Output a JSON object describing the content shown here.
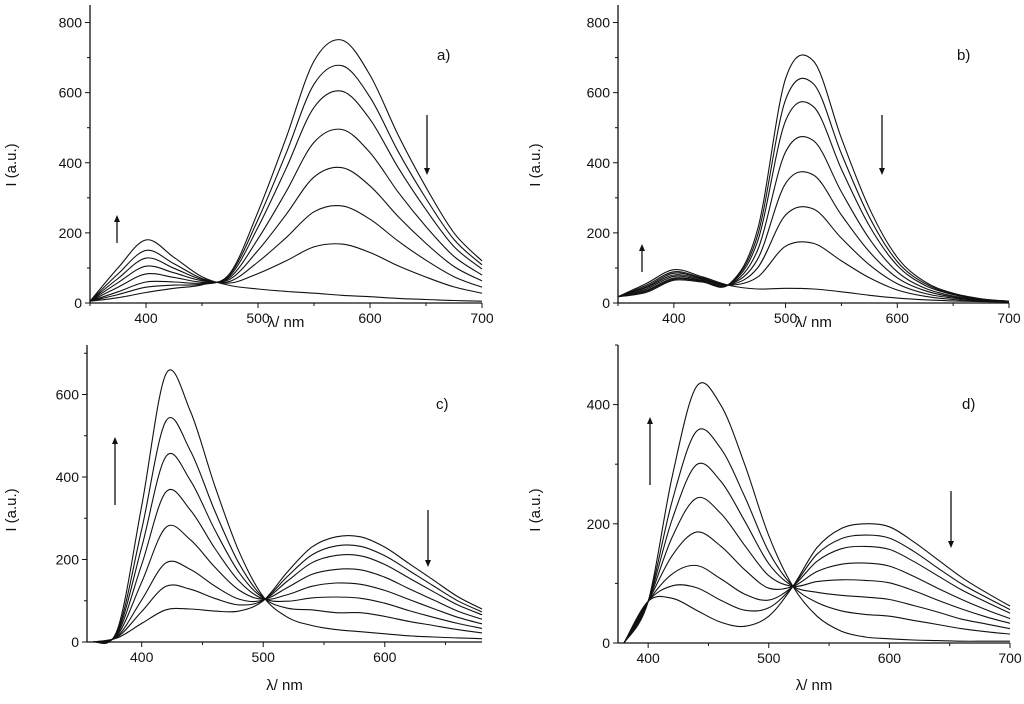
{
  "chart_data": [
    {
      "type": "line",
      "panel_label": "a)",
      "xlabel": "λ/ nm",
      "ylabel": "I (a.u.)",
      "xlim": [
        350,
        700
      ],
      "ylim": [
        0,
        850
      ],
      "xticks": [
        400,
        500,
        600,
        700
      ],
      "yticks": [
        0,
        200,
        400,
        600,
        800
      ],
      "grid": false,
      "annotations": [
        "arrow-up near 400 nm band",
        "arrow-down near 650 nm band"
      ],
      "x": [
        350,
        375,
        400,
        425,
        450,
        475,
        500,
        525,
        550,
        575,
        600,
        625,
        650,
        675,
        700
      ],
      "series": [
        {
          "values": [
            5,
            15,
            30,
            42,
            52,
            85,
            260,
            470,
            690,
            750,
            650,
            480,
            330,
            200,
            120
          ]
        },
        {
          "values": [
            5,
            24,
            45,
            51,
            54,
            82,
            238,
            426,
            624,
            677,
            587,
            433,
            298,
            181,
            109
          ]
        },
        {
          "values": [
            5,
            32,
            60,
            60,
            57,
            78,
            216,
            383,
            558,
            604,
            524,
            387,
            266,
            161,
            97
          ]
        },
        {
          "values": [
            5,
            45,
            83,
            73,
            60,
            73,
            183,
            317,
            458,
            495,
            429,
            317,
            218,
            133,
            80
          ]
        },
        {
          "values": [
            5,
            58,
            105,
            86,
            64,
            68,
            150,
            252,
            359,
            386,
            334,
            247,
            170,
            104,
            63
          ]
        },
        {
          "values": [
            5,
            70,
            128,
            99,
            67,
            62,
            117,
            186,
            260,
            277,
            239,
            177,
            122,
            75,
            45
          ]
        },
        {
          "values": [
            5,
            83,
            150,
            112,
            70,
            57,
            84,
            120,
            160,
            168,
            144,
            106,
            74,
            46,
            28
          ]
        },
        {
          "values": [
            5,
            100,
            180,
            130,
            75,
            50,
            40,
            33,
            28,
            22,
            18,
            13,
            10,
            7,
            5
          ]
        }
      ]
    },
    {
      "type": "line",
      "panel_label": "b)",
      "xlabel": "λ/ nm",
      "ylabel": "I (a.u.)",
      "xlim": [
        350,
        700
      ],
      "ylim": [
        0,
        850
      ],
      "xticks": [
        400,
        500,
        600,
        700
      ],
      "yticks": [
        0,
        200,
        400,
        600,
        800
      ],
      "grid": false,
      "annotations": [
        "arrow-up near 400 nm band",
        "arrow-down near 590 nm band"
      ],
      "x": [
        350,
        375,
        400,
        425,
        450,
        475,
        500,
        525,
        550,
        575,
        600,
        625,
        650,
        675,
        700
      ],
      "series": [
        {
          "values": [
            18,
            30,
            65,
            60,
            55,
            210,
            640,
            690,
            470,
            270,
            130,
            60,
            28,
            12,
            5
          ]
        },
        {
          "values": [
            18,
            33,
            68,
            62,
            55,
            193,
            580,
            625,
            426,
            245,
            118,
            55,
            26,
            11,
            5
          ]
        },
        {
          "values": [
            18,
            35,
            71,
            63,
            54,
            176,
            520,
            560,
            382,
            220,
            107,
            50,
            24,
            10,
            5
          ]
        },
        {
          "values": [
            18,
            39,
            76,
            65,
            53,
            151,
            431,
            463,
            317,
            183,
            89,
            42,
            20,
            9,
            4
          ]
        },
        {
          "values": [
            18,
            43,
            80,
            68,
            53,
            125,
            341,
            365,
            251,
            146,
            72,
            35,
            17,
            8,
            4
          ]
        },
        {
          "values": [
            18,
            46,
            85,
            70,
            52,
            100,
            251,
            268,
            185,
            109,
            55,
            27,
            14,
            7,
            4
          ]
        },
        {
          "values": [
            18,
            50,
            89,
            72,
            51,
            74,
            162,
            170,
            120,
            72,
            37,
            19,
            10,
            6,
            3
          ]
        },
        {
          "values": [
            18,
            55,
            95,
            75,
            50,
            40,
            42,
            40,
            32,
            22,
            14,
            9,
            6,
            4,
            3
          ]
        }
      ]
    },
    {
      "type": "line",
      "panel_label": "c)",
      "xlabel": "λ/ nm",
      "ylabel": "I (a.u.)",
      "xlim": [
        355,
        680
      ],
      "ylim": [
        0,
        720
      ],
      "xticks": [
        400,
        500,
        600
      ],
      "yticks": [
        0,
        200,
        400,
        600
      ],
      "grid": false,
      "annotations": [
        "arrow-up near 425 nm band",
        "arrow-down near 630 nm band"
      ],
      "x": [
        360,
        380,
        400,
        420,
        440,
        460,
        480,
        500,
        520,
        540,
        560,
        580,
        600,
        620,
        640,
        660,
        680
      ],
      "series": [
        {
          "values": [
            0,
            10,
            45,
            78,
            80,
            75,
            75,
            100,
            170,
            230,
            255,
            255,
            230,
            190,
            150,
            110,
            80
          ]
        },
        {
          "values": [
            0,
            12,
            74,
            135,
            128,
            106,
            90,
            101,
            159,
            211,
            233,
            232,
            209,
            173,
            136,
            100,
            73
          ]
        },
        {
          "values": [
            0,
            14,
            102,
            192,
            176,
            136,
            104,
            102,
            148,
            192,
            210,
            209,
            188,
            155,
            122,
            90,
            66
          ]
        },
        {
          "values": [
            0,
            17,
            145,
            278,
            248,
            182,
            126,
            104,
            132,
            164,
            176,
            175,
            157,
            129,
            102,
            75,
            55
          ]
        },
        {
          "values": [
            0,
            20,
            188,
            364,
            320,
            228,
            148,
            105,
            115,
            135,
            143,
            140,
            125,
            103,
            81,
            60,
            44
          ]
        },
        {
          "values": [
            0,
            23,
            230,
            450,
            392,
            273,
            169,
            107,
            99,
            107,
            109,
            106,
            94,
            76,
            60,
            45,
            33
          ]
        },
        {
          "values": [
            0,
            26,
            273,
            536,
            464,
            319,
            191,
            108,
            82,
            78,
            71,
            71,
            62,
            50,
            40,
            30,
            22
          ]
        },
        {
          "values": [
            0,
            30,
            330,
            650,
            560,
            380,
            220,
            110,
            60,
            40,
            30,
            25,
            20,
            15,
            12,
            10,
            8
          ]
        }
      ]
    },
    {
      "type": "line",
      "panel_label": "d)",
      "xlabel": "λ/ nm",
      "ylabel": "I (a.u.)",
      "xlim": [
        375,
        700
      ],
      "ylim": [
        0,
        500
      ],
      "xticks": [
        400,
        500,
        600,
        700
      ],
      "yticks": [
        0,
        200,
        400
      ],
      "grid": false,
      "annotations": [
        "arrow-up near 445 nm band",
        "arrow-down near 650 nm band"
      ],
      "x": [
        380,
        400,
        420,
        440,
        460,
        480,
        500,
        520,
        540,
        560,
        580,
        600,
        620,
        640,
        660,
        680,
        700
      ],
      "series": [
        {
          "values": [
            0,
            70,
            75,
            55,
            35,
            28,
            45,
            95,
            160,
            192,
            200,
            195,
            170,
            140,
            110,
            85,
            62
          ]
        },
        {
          "values": [
            0,
            70,
            96,
            93,
            72,
            55,
            59,
            95,
            149,
            175,
            181,
            176,
            154,
            126,
            99,
            77,
            56
          ]
        },
        {
          "values": [
            0,
            70,
            116,
            130,
            108,
            82,
            72,
            95,
            137,
            158,
            162,
            157,
            137,
            113,
            89,
            69,
            50
          ]
        },
        {
          "values": [
            0,
            70,
            147,
            186,
            163,
            123,
            92,
            95,
            120,
            132,
            134,
            129,
            112,
            92,
            73,
            56,
            41
          ]
        },
        {
          "values": [
            0,
            70,
            178,
            243,
            218,
            164,
            113,
            95,
            103,
            106,
            105,
            101,
            88,
            72,
            57,
            44,
            33
          ]
        },
        {
          "values": [
            0,
            70,
            208,
            299,
            272,
            205,
            133,
            95,
            85,
            80,
            77,
            73,
            63,
            52,
            40,
            32,
            24
          ]
        },
        {
          "values": [
            0,
            70,
            239,
            355,
            327,
            246,
            153,
            95,
            68,
            54,
            48,
            45,
            38,
            31,
            24,
            19,
            15
          ]
        },
        {
          "values": [
            0,
            70,
            280,
            430,
            400,
            300,
            180,
            95,
            45,
            20,
            10,
            7,
            5,
            4,
            3,
            3,
            3
          ]
        }
      ]
    }
  ],
  "colors": {
    "line": "#111111",
    "background": "#ffffff"
  }
}
